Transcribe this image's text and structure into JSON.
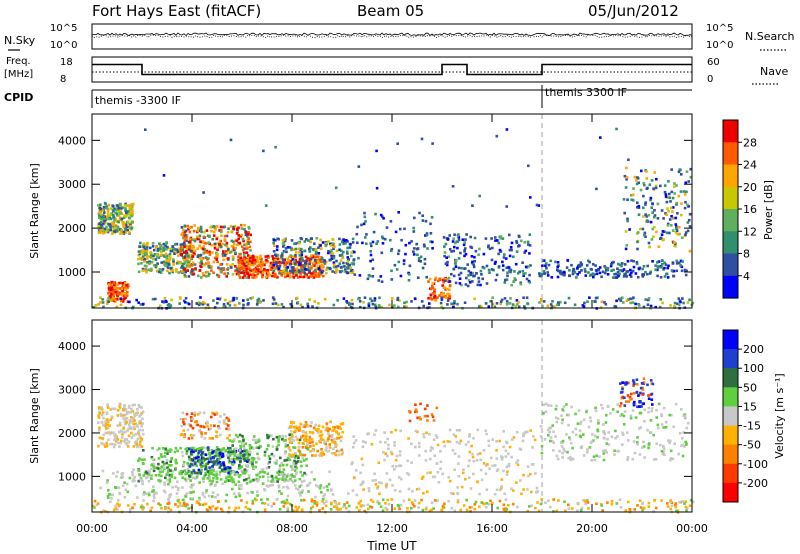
{
  "header": {
    "station": "Fort Hays East (fitACF)",
    "beam": "Beam 05",
    "date": "05/Jun/2012"
  },
  "status_panels": {
    "nsky_label": "N.Sky",
    "nsearch_label": "N.Search",
    "freq_label_line1": "Freq.",
    "freq_label_line2": "[MHz]",
    "nave_label": "Nave",
    "cpid_label": "CPID",
    "noise_ticks": [
      "10^5",
      "10^0"
    ],
    "freq_ticks": [
      "18",
      "8"
    ],
    "nave_ticks": [
      "60",
      "0"
    ],
    "cpid_segments": [
      {
        "start_hour": 0,
        "label": "themis -3300 IF"
      },
      {
        "start_hour": 18,
        "label": "themis 3300 IF"
      }
    ],
    "freq_steps": [
      {
        "from": 0,
        "to": 2,
        "value": 15
      },
      {
        "from": 2,
        "to": 14,
        "value": 11
      },
      {
        "from": 14,
        "to": 15,
        "value": 15
      },
      {
        "from": 15,
        "to": 18,
        "value": 11
      },
      {
        "from": 18,
        "to": 24,
        "value": 15
      }
    ]
  },
  "chart_data": [
    {
      "type": "heatmap",
      "quantity": "power",
      "ylabel": "Slant Range [km]",
      "xlabel": "Time UT",
      "xlim": [
        0,
        24
      ],
      "ylim": [
        180,
        4600
      ],
      "x_ticks": [
        "00:00",
        "04:00",
        "08:00",
        "12:00",
        "16:00",
        "20:00",
        "00:00"
      ],
      "y_ticks": [
        1000,
        2000,
        3000,
        4000
      ],
      "colorbar_label": "Power [dB]",
      "colorbar_ticks": [
        4,
        8,
        12,
        16,
        20,
        24,
        28
      ],
      "colorbar_colors": [
        "#0000ff",
        "#2f4fa0",
        "#2f8f6f",
        "#5faf5f",
        "#c8c800",
        "#ffa500",
        "#ff5a00",
        "#ee0000"
      ],
      "marker_hour": 18
    },
    {
      "type": "heatmap",
      "quantity": "velocity",
      "ylabel": "Slant Range [km]",
      "xlabel": "Time UT",
      "xlim": [
        0,
        24
      ],
      "ylim": [
        180,
        4600
      ],
      "x_ticks": [
        "00:00",
        "04:00",
        "08:00",
        "12:00",
        "16:00",
        "20:00",
        "00:00"
      ],
      "y_ticks": [
        1000,
        2000,
        3000,
        4000
      ],
      "colorbar_label": "Velocity [m s⁻¹]",
      "colorbar_ticks": [
        "200",
        "100",
        "50",
        "15",
        "-15",
        "-50",
        "-100",
        "-200"
      ],
      "colorbar_colors": [
        "#0000ff",
        "#1f3fcf",
        "#2f6f3f",
        "#5fcf3f",
        "#c8c8c8",
        "#ffb000",
        "#ff8000",
        "#ff3a00",
        "#ff0000"
      ],
      "marker_hour": 18
    }
  ],
  "colors": {
    "grey": "#c8c8c8",
    "marker_line": "#a0a0a0"
  }
}
